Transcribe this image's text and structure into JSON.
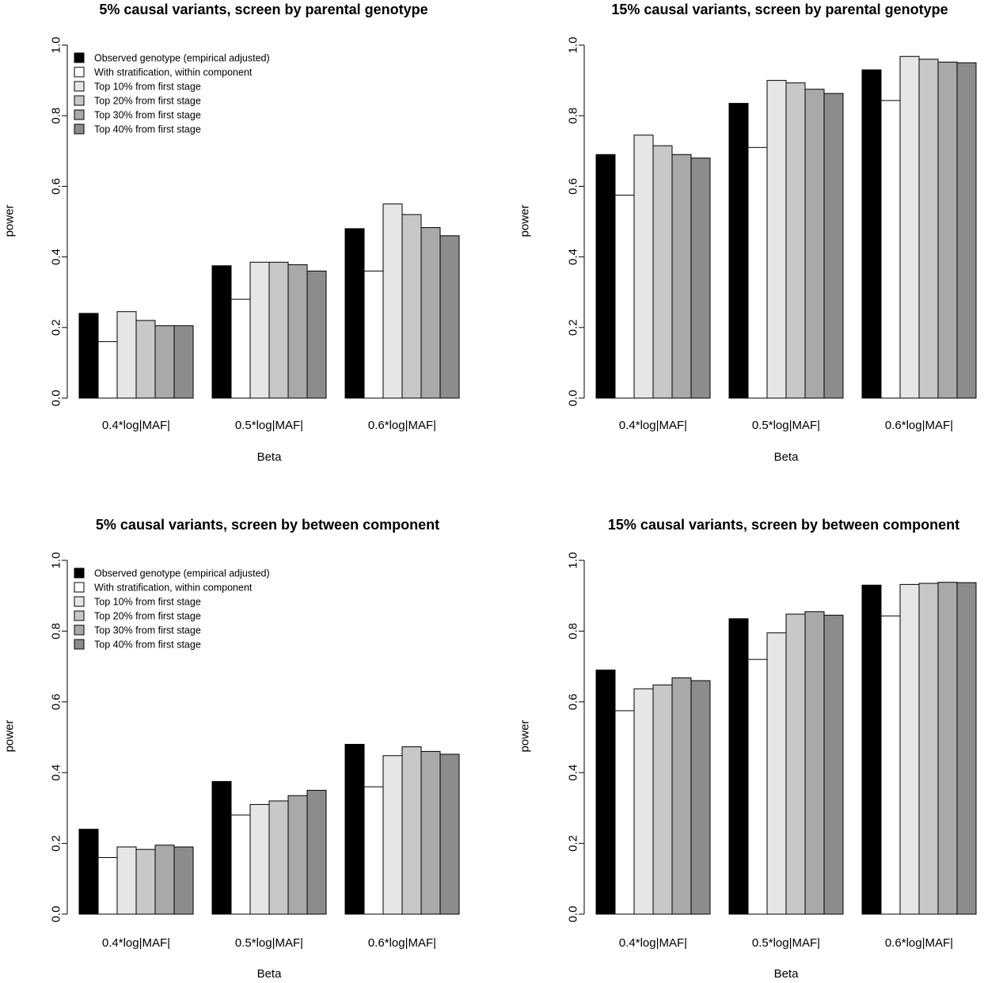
{
  "colors": {
    "series": [
      "#000000",
      "#ffffff",
      "#e6e6e6",
      "#c8c8c8",
      "#a9a9a9",
      "#8c8c8c"
    ],
    "stroke": "#000000"
  },
  "chart_data": [
    {
      "type": "bar",
      "title": "5% causal variants, screen by parental genotype",
      "xlabel": "Beta",
      "ylabel": "power",
      "ylim": [
        0,
        1
      ],
      "yticks": [
        "0.0",
        "0.2",
        "0.4",
        "0.6",
        "0.8",
        "1.0"
      ],
      "categories": [
        "0.4*log|MAF|",
        "0.5*log|MAF|",
        "0.6*log|MAF|"
      ],
      "legend": "top-left",
      "series": [
        {
          "name": "Observed genotype (empirical adjusted)",
          "values": [
            0.24,
            0.375,
            0.48
          ]
        },
        {
          "name": "With stratification, within component",
          "values": [
            0.16,
            0.28,
            0.36
          ]
        },
        {
          "name": "Top 10% from first stage",
          "values": [
            0.245,
            0.385,
            0.55
          ]
        },
        {
          "name": "Top 20% from first stage",
          "values": [
            0.22,
            0.385,
            0.52
          ]
        },
        {
          "name": "Top 30% from first stage",
          "values": [
            0.205,
            0.378,
            0.483
          ]
        },
        {
          "name": "Top 40% from first stage",
          "values": [
            0.205,
            0.36,
            0.46
          ]
        }
      ]
    },
    {
      "type": "bar",
      "title": "15% causal variants, screen by parental genotype",
      "xlabel": "Beta",
      "ylabel": "power",
      "ylim": [
        0,
        1
      ],
      "yticks": [
        "0.0",
        "0.2",
        "0.4",
        "0.6",
        "0.8",
        "1.0"
      ],
      "categories": [
        "0.4*log|MAF|",
        "0.5*log|MAF|",
        "0.6*log|MAF|"
      ],
      "series": [
        {
          "values": [
            0.69,
            0.835,
            0.93
          ]
        },
        {
          "values": [
            0.575,
            0.71,
            0.843
          ]
        },
        {
          "values": [
            0.745,
            0.9,
            0.968
          ]
        },
        {
          "values": [
            0.715,
            0.893,
            0.96
          ]
        },
        {
          "values": [
            0.69,
            0.875,
            0.952
          ]
        },
        {
          "values": [
            0.68,
            0.863,
            0.95
          ]
        }
      ]
    },
    {
      "type": "bar",
      "title": "5% causal variants, screen by between component",
      "xlabel": "Beta",
      "ylabel": "power",
      "ylim": [
        0,
        1
      ],
      "yticks": [
        "0.0",
        "0.2",
        "0.4",
        "0.6",
        "0.8",
        "1.0"
      ],
      "categories": [
        "0.4*log|MAF|",
        "0.5*log|MAF|",
        "0.6*log|MAF|"
      ],
      "legend": "top-left",
      "series": [
        {
          "name": "Observed genotype (empirical adjusted)",
          "values": [
            0.24,
            0.375,
            0.48
          ]
        },
        {
          "name": "With stratification, within component",
          "values": [
            0.16,
            0.28,
            0.36
          ]
        },
        {
          "name": "Top 10% from first stage",
          "values": [
            0.19,
            0.31,
            0.448
          ]
        },
        {
          "name": "Top 20% from first stage",
          "values": [
            0.183,
            0.32,
            0.473
          ]
        },
        {
          "name": "Top 30% from first stage",
          "values": [
            0.195,
            0.335,
            0.46
          ]
        },
        {
          "name": "Top 40% from first stage",
          "values": [
            0.19,
            0.35,
            0.452
          ]
        }
      ]
    },
    {
      "type": "bar",
      "title": "15% causal variants, screen by between component",
      "xlabel": "Beta",
      "ylabel": "power",
      "ylim": [
        0,
        1
      ],
      "yticks": [
        "0.0",
        "0.2",
        "0.4",
        "0.6",
        "0.8",
        "1.0"
      ],
      "categories": [
        "0.4*log|MAF|",
        "0.5*log|MAF|",
        "0.6*log|MAF|"
      ],
      "series": [
        {
          "values": [
            0.69,
            0.835,
            0.93
          ]
        },
        {
          "values": [
            0.575,
            0.72,
            0.843
          ]
        },
        {
          "values": [
            0.637,
            0.795,
            0.932
          ]
        },
        {
          "values": [
            0.648,
            0.848,
            0.935
          ]
        },
        {
          "values": [
            0.668,
            0.855,
            0.938
          ]
        },
        {
          "values": [
            0.66,
            0.845,
            0.937
          ]
        }
      ]
    }
  ]
}
